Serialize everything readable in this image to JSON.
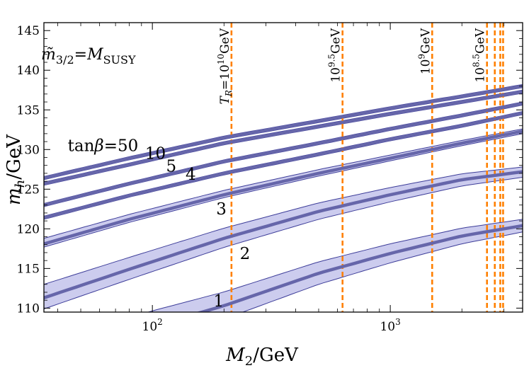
{
  "chart_data": {
    "type": "line",
    "xlabel_main": "M",
    "xlabel_sub": "2",
    "xlabel_tail": "/GeV",
    "ylabel_main": "m",
    "ylabel_sub": "h",
    "ylabel_tail": "/GeV",
    "x_scale": "log",
    "xlim": [
      35,
      3600
    ],
    "ylim": [
      109.5,
      146
    ],
    "grid": false,
    "annotation": {
      "tilde_m": "m̃",
      "sub_left": "3/2",
      "equals": "=",
      "rhs": "M",
      "sub_right": "SUSY"
    },
    "x_ticks": [
      {
        "value": 100,
        "base": "10",
        "exp": "2"
      },
      {
        "value": 1000,
        "base": "10",
        "exp": "3"
      }
    ],
    "y_ticks": [
      110,
      115,
      120,
      125,
      130,
      135,
      140,
      145
    ],
    "series": [
      {
        "name": "tanβ=50",
        "label_parts": [
          "tan",
          "β",
          "=50"
        ],
        "label_at": [
          62,
          129.8
        ],
        "x": [
          35,
          80,
          200,
          500,
          1000,
          2000,
          3600
        ],
        "y": [
          126.4,
          128.9,
          131.5,
          133.6,
          135.2,
          136.7,
          138.0
        ],
        "band": [
          [
            35,
            126.2,
            126.6
          ],
          [
            3600,
            137.8,
            138.2
          ]
        ]
      },
      {
        "name": "10",
        "label_parts": [
          "10"
        ],
        "label_at": [
          103,
          128.8
        ],
        "x": [
          35,
          80,
          200,
          500,
          1000,
          2000,
          3600
        ],
        "y": [
          125.7,
          128.1,
          130.8,
          132.9,
          134.5,
          136.0,
          137.3
        ],
        "band": [
          [
            35,
            125.5,
            125.9
          ],
          [
            3600,
            137.1,
            137.5
          ]
        ]
      },
      {
        "name": "5",
        "label_parts": [
          "5"
        ],
        "label_at": [
          120,
          127.2
        ],
        "x": [
          35,
          80,
          200,
          500,
          1000,
          2000,
          3600
        ],
        "y": [
          123.0,
          125.7,
          128.5,
          130.8,
          132.6,
          134.3,
          135.8
        ],
        "band": [
          [
            35,
            122.8,
            123.2
          ],
          [
            3600,
            135.6,
            136.0
          ]
        ]
      },
      {
        "name": "4",
        "label_parts": [
          "4"
        ],
        "label_at": [
          145,
          126.2
        ],
        "x": [
          35,
          80,
          200,
          500,
          1000,
          2000,
          3600
        ],
        "y": [
          121.4,
          124.2,
          127.0,
          129.4,
          131.3,
          133.0,
          134.6
        ],
        "band": [
          [
            35,
            121.2,
            121.6
          ],
          [
            3600,
            134.4,
            134.8
          ]
        ]
      },
      {
        "name": "3",
        "label_parts": [
          "3"
        ],
        "label_at": [
          195,
          121.8
        ],
        "x": [
          35,
          80,
          200,
          500,
          1000,
          2000,
          3600
        ],
        "y": [
          118.1,
          121.2,
          124.3,
          127.0,
          128.9,
          130.8,
          132.3
        ],
        "band": [
          [
            35,
            117.7,
            118.8
          ],
          [
            3600,
            132.0,
            132.6
          ]
        ]
      },
      {
        "name": "2",
        "label_parts": [
          "2"
        ],
        "label_at": [
          245,
          116.2
        ],
        "x": [
          35,
          80,
          200,
          500,
          1000,
          2000,
          3600
        ],
        "y": [
          111.3,
          114.9,
          118.8,
          122.2,
          124.3,
          126.2,
          127.2
        ],
        "band": [
          [
            35,
            109.9,
            113.0
          ],
          [
            3600,
            126.5,
            127.8
          ]
        ]
      },
      {
        "name": "1",
        "label_parts": [
          "1"
        ],
        "label_at": [
          190,
          110.2
        ],
        "x": [
          35,
          100,
          200,
          500,
          1000,
          2000,
          3600
        ],
        "y": [
          103.2,
          107.7,
          110.3,
          114.4,
          116.9,
          119.1,
          120.4
        ],
        "band": [
          [
            35,
            101.0,
            105.5
          ],
          [
            3600,
            119.6,
            121.2
          ]
        ]
      }
    ],
    "reheating_lines": [
      {
        "x": 215,
        "parts": [
          "T",
          "R",
          "=10",
          "10",
          "GeV"
        ]
      },
      {
        "x": 630,
        "parts": [
          "",
          "",
          "10",
          "9.5",
          "GeV"
        ]
      },
      {
        "x": 1500,
        "parts": [
          "",
          "",
          "10",
          "9",
          "GeV"
        ]
      },
      {
        "x": 2550,
        "parts": [
          "",
          "",
          "10",
          "8.5",
          "GeV"
        ]
      },
      {
        "x": 2750,
        "parts": []
      },
      {
        "x": 2900,
        "parts": []
      },
      {
        "x": 2980,
        "parts": []
      }
    ],
    "colors": {
      "line": "#6666aa",
      "band_fill": "#ccccee",
      "band_edge": "#3d3d99",
      "vline": "#ff8000"
    }
  }
}
